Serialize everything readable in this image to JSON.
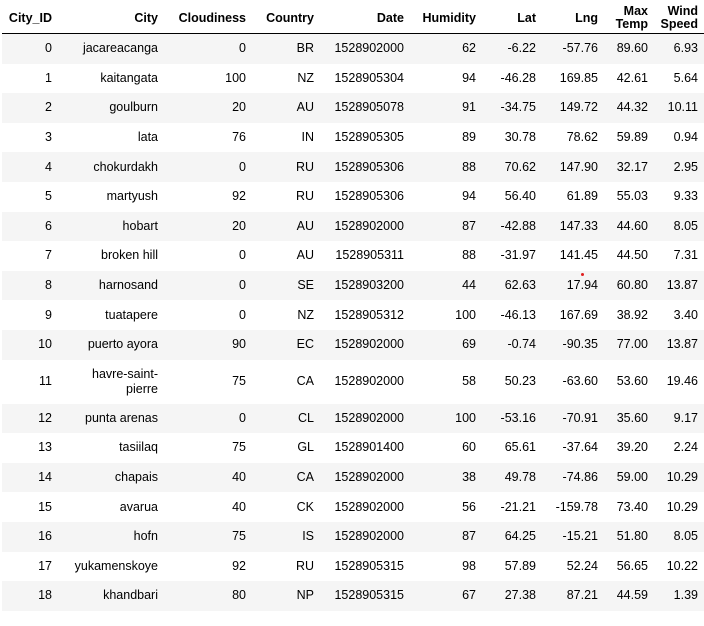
{
  "table": {
    "columns": [
      "City_ID",
      "City",
      "Cloudiness",
      "Country",
      "Date",
      "Humidity",
      "Lat",
      "Lng",
      "Max Temp",
      "Wind Speed"
    ],
    "rows": [
      [
        "0",
        "jacareacanga",
        "0",
        "BR",
        "1528902000",
        "62",
        "-6.22",
        "-57.76",
        "89.60",
        "6.93"
      ],
      [
        "1",
        "kaitangata",
        "100",
        "NZ",
        "1528905304",
        "94",
        "-46.28",
        "169.85",
        "42.61",
        "5.64"
      ],
      [
        "2",
        "goulburn",
        "20",
        "AU",
        "1528905078",
        "91",
        "-34.75",
        "149.72",
        "44.32",
        "10.11"
      ],
      [
        "3",
        "lata",
        "76",
        "IN",
        "1528905305",
        "89",
        "30.78",
        "78.62",
        "59.89",
        "0.94"
      ],
      [
        "4",
        "chokurdakh",
        "0",
        "RU",
        "1528905306",
        "88",
        "70.62",
        "147.90",
        "32.17",
        "2.95"
      ],
      [
        "5",
        "martyush",
        "92",
        "RU",
        "1528905306",
        "94",
        "56.40",
        "61.89",
        "55.03",
        "9.33"
      ],
      [
        "6",
        "hobart",
        "20",
        "AU",
        "1528902000",
        "87",
        "-42.88",
        "147.33",
        "44.60",
        "8.05"
      ],
      [
        "7",
        "broken hill",
        "0",
        "AU",
        "1528905311",
        "88",
        "-31.97",
        "141.45",
        "44.50",
        "7.31"
      ],
      [
        "8",
        "harnosand",
        "0",
        "SE",
        "1528903200",
        "44",
        "62.63",
        "17.94",
        "60.80",
        "13.87"
      ],
      [
        "9",
        "tuatapere",
        "0",
        "NZ",
        "1528905312",
        "100",
        "-46.13",
        "167.69",
        "38.92",
        "3.40"
      ],
      [
        "10",
        "puerto ayora",
        "90",
        "EC",
        "1528902000",
        "69",
        "-0.74",
        "-90.35",
        "77.00",
        "13.87"
      ],
      [
        "11",
        "havre-saint-pierre",
        "75",
        "CA",
        "1528902000",
        "58",
        "50.23",
        "-63.60",
        "53.60",
        "19.46"
      ],
      [
        "12",
        "punta arenas",
        "0",
        "CL",
        "1528902000",
        "100",
        "-53.16",
        "-70.91",
        "35.60",
        "9.17"
      ],
      [
        "13",
        "tasiilaq",
        "75",
        "GL",
        "1528901400",
        "60",
        "65.61",
        "-37.64",
        "39.20",
        "2.24"
      ],
      [
        "14",
        "chapais",
        "40",
        "CA",
        "1528902000",
        "38",
        "49.78",
        "-74.86",
        "59.00",
        "10.29"
      ],
      [
        "15",
        "avarua",
        "40",
        "CK",
        "1528902000",
        "56",
        "-21.21",
        "-159.78",
        "73.40",
        "10.29"
      ],
      [
        "16",
        "hofn",
        "75",
        "IS",
        "1528902000",
        "87",
        "64.25",
        "-15.21",
        "51.80",
        "8.05"
      ],
      [
        "17",
        "yukamenskoye",
        "92",
        "RU",
        "1528905315",
        "98",
        "57.89",
        "52.24",
        "56.65",
        "10.22"
      ],
      [
        "18",
        "khandbari",
        "80",
        "NP",
        "1528905315",
        "67",
        "27.38",
        "87.21",
        "44.59",
        "1.39"
      ]
    ]
  }
}
